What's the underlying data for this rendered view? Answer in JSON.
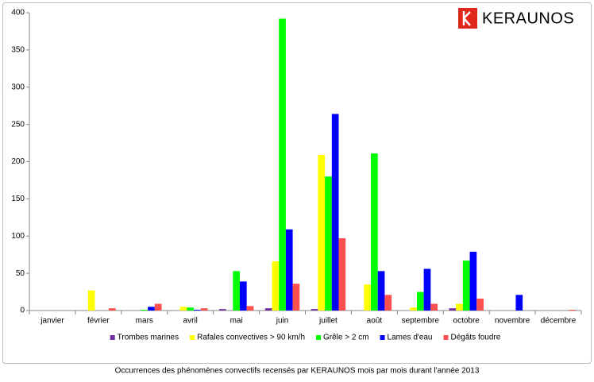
{
  "chart_data": {
    "type": "bar",
    "brand": "KERAUNOS",
    "caption": "Occurrences des phénomènes convectifs recensés par KERAUNOS mois par mois durant l'année 2013",
    "categories": [
      "janvier",
      "février",
      "mars",
      "avril",
      "mai",
      "juin",
      "juillet",
      "août",
      "septembre",
      "octobre",
      "novembre",
      "décembre"
    ],
    "series": [
      {
        "name": "Trombes marines",
        "color": "#7030a0",
        "values": [
          0,
          0,
          0,
          0,
          2,
          3,
          2,
          0,
          0,
          3,
          0,
          0
        ]
      },
      {
        "name": "Rafales convectives > 90 km/h",
        "color": "#ffff00",
        "values": [
          0,
          27,
          0,
          5,
          0,
          66,
          209,
          35,
          4,
          9,
          0,
          0
        ]
      },
      {
        "name": "Grêle > 2 cm",
        "color": "#00ff00",
        "values": [
          0,
          0,
          1,
          4,
          53,
          392,
          180,
          211,
          25,
          67,
          0,
          0
        ]
      },
      {
        "name": "Lames d'eau",
        "color": "#0000ff",
        "values": [
          0,
          0,
          5,
          1,
          39,
          109,
          264,
          53,
          56,
          79,
          21,
          0
        ]
      },
      {
        "name": "Dégâts foudre",
        "color": "#ff5050",
        "values": [
          0,
          3,
          9,
          3,
          6,
          36,
          97,
          21,
          9,
          16,
          0,
          1
        ]
      }
    ],
    "ylim": [
      0,
      400
    ],
    "yticks": [
      0,
      50,
      100,
      150,
      200,
      250,
      300,
      350,
      400
    ],
    "grid": false,
    "legend": "bottom"
  }
}
